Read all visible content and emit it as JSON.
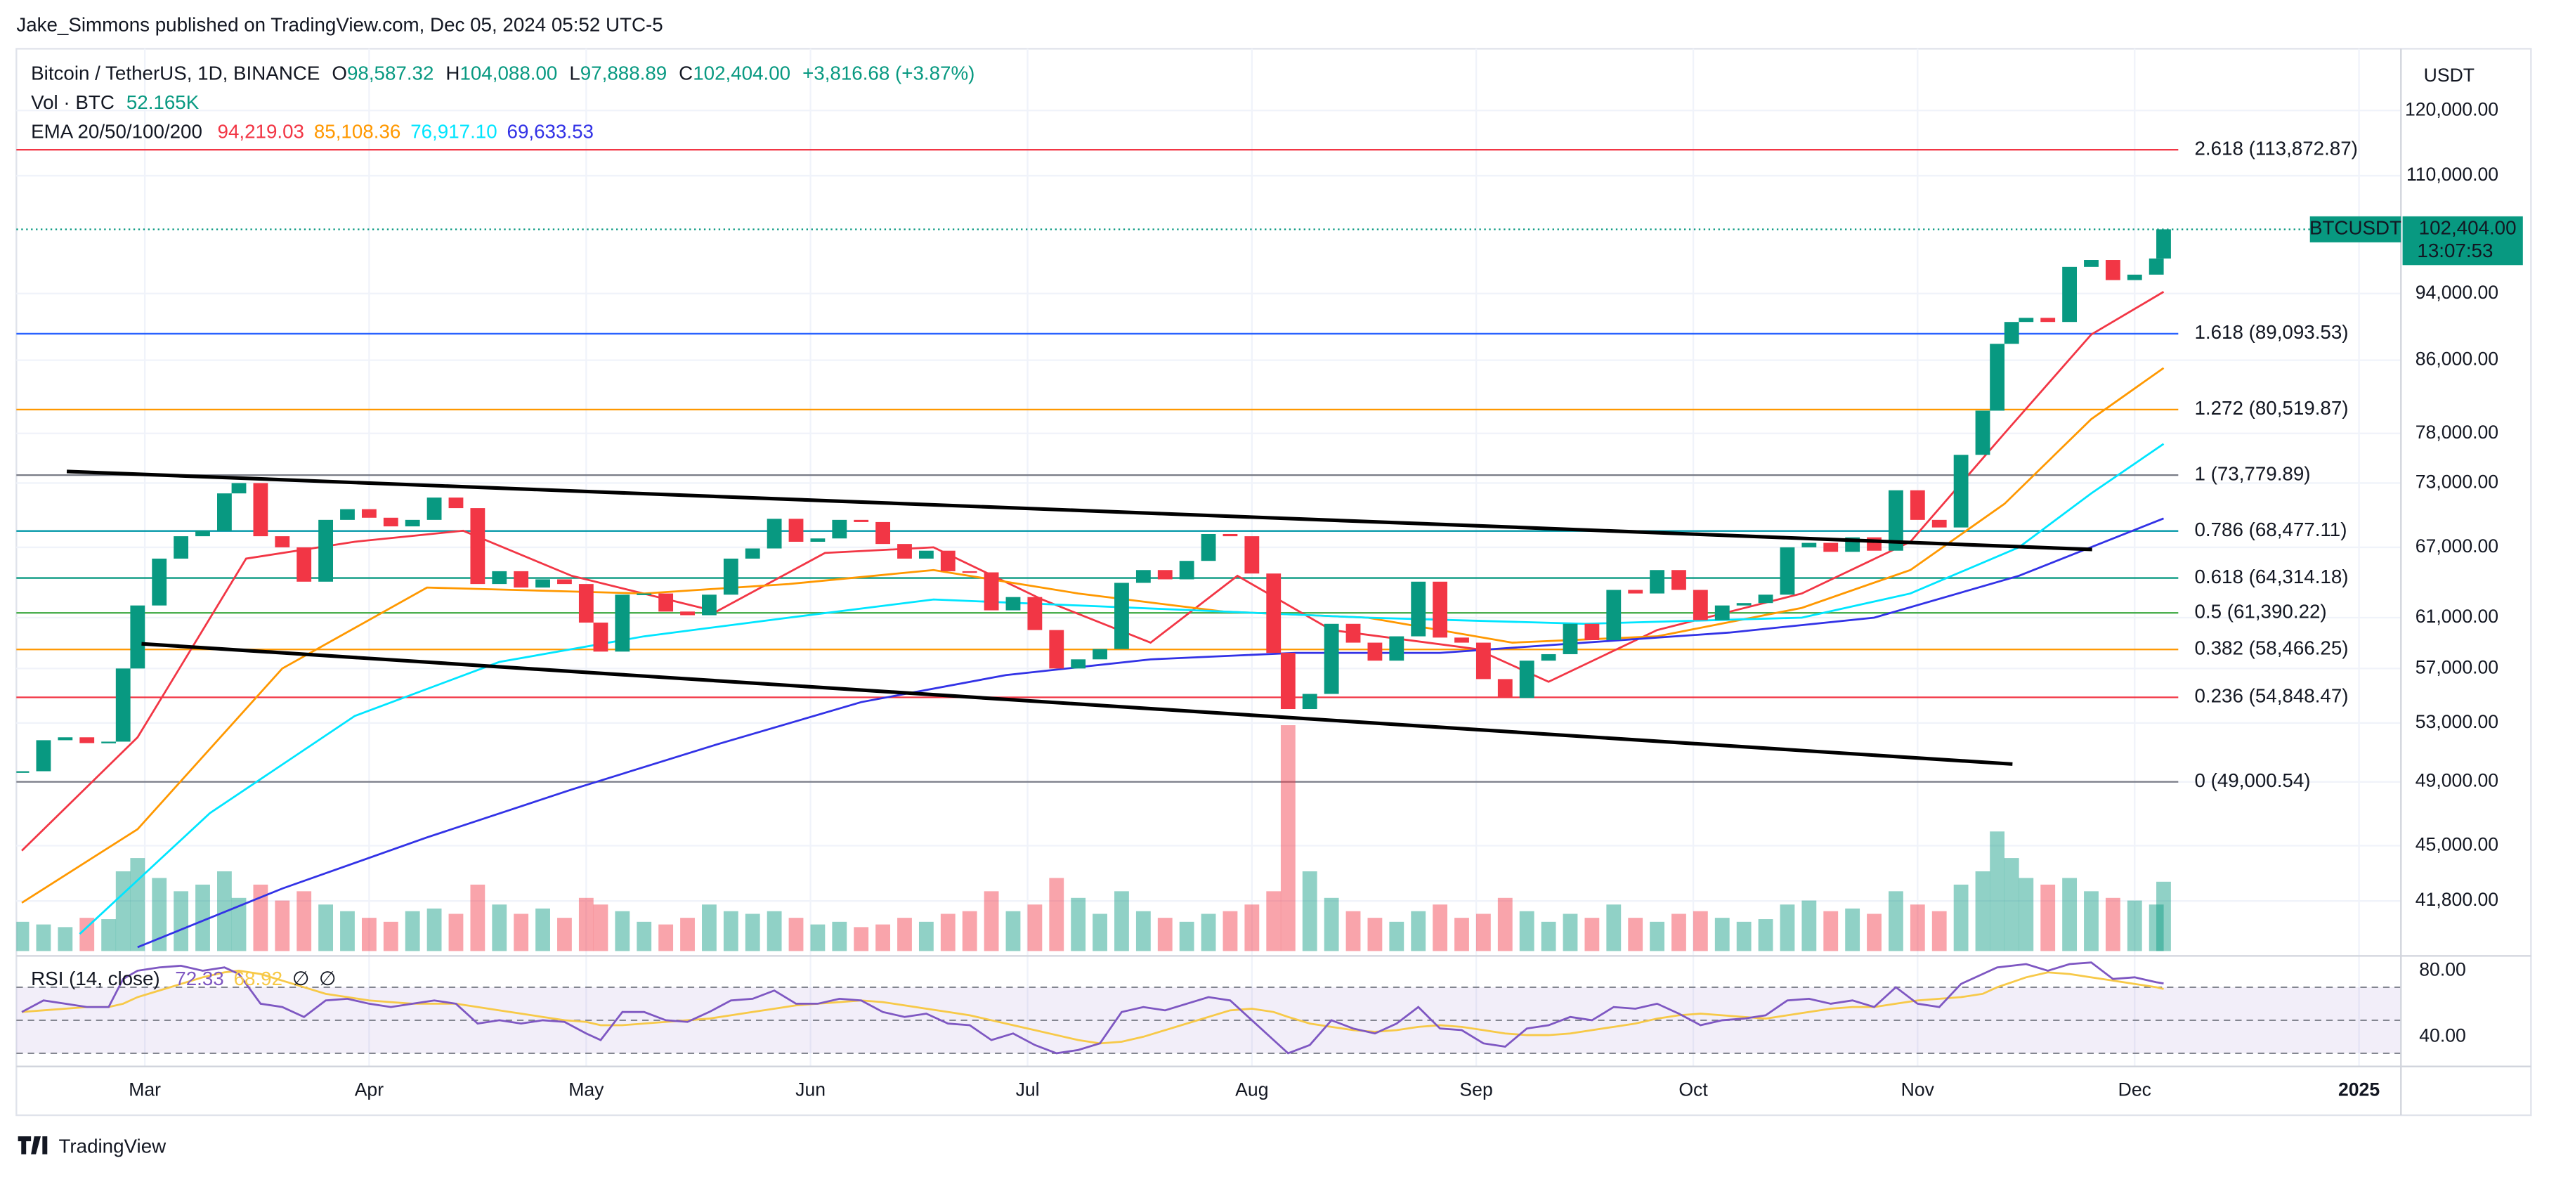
{
  "header": {
    "published": "Jake_Simmons published on TradingView.com, Dec 05, 2024 05:52 UTC-5"
  },
  "chart_data": {
    "type": "candlestick",
    "title": "Bitcoin / TetherUS, 1D, BINANCE",
    "ohlc_text": [
      "O",
      "98,587.32",
      "H",
      "104,088.00",
      "L",
      "97,888.89",
      "C",
      "102,404.00",
      "+3,816.68 (+3.87%)"
    ],
    "currency": "USDT",
    "log_scale": true,
    "grid": true,
    "ylim": [
      39100,
      130300
    ],
    "yticks": [
      {
        "value": 120000,
        "label": "120,000.00"
      },
      {
        "value": 110000,
        "label": "110,000.00"
      },
      {
        "value": 94000,
        "label": "94,000.00"
      },
      {
        "value": 86000,
        "label": "86,000.00"
      },
      {
        "value": 78000,
        "label": "78,000.00"
      },
      {
        "value": 73000,
        "label": "73,000.00"
      },
      {
        "value": 67000,
        "label": "67,000.00"
      },
      {
        "value": 61000,
        "label": "61,000.00"
      },
      {
        "value": 57000,
        "label": "57,000.00"
      },
      {
        "value": 53000,
        "label": "53,000.00"
      },
      {
        "value": 49000,
        "label": "49,000.00"
      },
      {
        "value": 45000,
        "label": "45,000.00"
      },
      {
        "value": 41800,
        "label": "41,800.00"
      }
    ],
    "xlim": [
      43.25,
      372.8
    ],
    "xticks": [
      {
        "value": 61,
        "label": "Mar"
      },
      {
        "value": 92,
        "label": "Apr"
      },
      {
        "value": 122,
        "label": "May"
      },
      {
        "value": 153,
        "label": "Jun"
      },
      {
        "value": 183,
        "label": "Jul"
      },
      {
        "value": 214,
        "label": "Aug"
      },
      {
        "value": 245,
        "label": "Sep"
      },
      {
        "value": 275,
        "label": "Oct"
      },
      {
        "value": 306,
        "label": "Nov"
      },
      {
        "value": 336,
        "label": "Dec"
      },
      {
        "value": 367,
        "label": "2025"
      }
    ],
    "x": [
      44,
      47,
      50,
      53,
      56,
      58,
      60,
      63,
      66,
      69,
      72,
      74,
      77,
      80,
      83,
      86,
      89,
      92,
      95,
      98,
      101,
      104,
      107,
      110,
      113,
      116,
      119,
      122,
      124,
      127,
      130,
      133,
      136,
      139,
      142,
      145,
      148,
      151,
      154,
      157,
      160,
      163,
      166,
      169,
      172,
      175,
      178,
      181,
      184,
      187,
      190,
      193,
      196,
      199,
      202,
      205,
      208,
      211,
      214,
      217,
      219,
      222,
      225,
      228,
      231,
      234,
      237,
      240,
      243,
      246,
      249,
      252,
      255,
      258,
      261,
      264,
      267,
      270,
      273,
      276,
      279,
      282,
      285,
      288,
      291,
      294,
      297,
      300,
      303,
      306,
      309,
      312,
      315,
      317,
      319,
      321,
      324,
      327,
      330,
      333,
      336,
      339,
      340
    ],
    "series": [
      {
        "name": "BTCUSDT",
        "up_color": "#089981",
        "down_color": "#f23645",
        "values": [
          49700,
          51800,
          52000,
          51600,
          51700,
          57000,
          62000,
          66000,
          68000,
          68500,
          72000,
          73000,
          68000,
          67000,
          64000,
          69500,
          70500,
          69700,
          68900,
          69500,
          71600,
          70600,
          63800,
          64900,
          63500,
          64200,
          63800,
          60600,
          58300,
          62900,
          63000,
          61500,
          61200,
          62900,
          66000,
          66900,
          69600,
          67500,
          67800,
          69500,
          69300,
          67300,
          66000,
          66700,
          64900,
          64800,
          61600,
          62700,
          60000,
          57000,
          57700,
          58500,
          63900,
          65000,
          64200,
          65800,
          68200,
          68000,
          64700,
          58200,
          54000,
          55100,
          60500,
          59000,
          57600,
          59500,
          64000,
          59400,
          59000,
          56200,
          54800,
          57600,
          58100,
          60500,
          59200,
          63300,
          63000,
          65000,
          63300,
          60800,
          62000,
          62200,
          62900,
          67000,
          67400,
          66600,
          67900,
          66700,
          72300,
          69500,
          68800,
          75800,
          80400,
          87900,
          90500,
          91000,
          90500,
          97400,
          98300,
          95700,
          96400,
          98500,
          102404
        ]
      }
    ],
    "last_price_label": "102,404.00",
    "countdown": "13:07:53",
    "fib_levels": [
      {
        "value": 113872.87,
        "label": "2.618 (113,872.87)",
        "color": "#f23645"
      },
      {
        "value": 89093.53,
        "label": "1.618 (89,093.53)",
        "color": "#2962ff"
      },
      {
        "value": 80519.87,
        "label": "1.272 (80,519.87)",
        "color": "#ff9800"
      },
      {
        "value": 73779.89,
        "label": "1 (73,779.89)",
        "color": "#787b86"
      },
      {
        "value": 68477.11,
        "label": "0.786 (68,477.11)",
        "color": "#0097a7"
      },
      {
        "value": 64314.18,
        "label": "0.618 (64,314.18)",
        "color": "#089981"
      },
      {
        "value": 61390.22,
        "label": "0.5 (61,390.22)",
        "color": "#4caf50"
      },
      {
        "value": 58466.25,
        "label": "0.382 (58,466.25)",
        "color": "#ff9800"
      },
      {
        "value": 54848.47,
        "label": "0.236 (54,848.47)",
        "color": "#f23645"
      },
      {
        "value": 49000.54,
        "label": "0 (49,000.54)",
        "color": "#787b86"
      }
    ],
    "volume": {
      "title": "Vol · BTC",
      "value_label": "52.165K",
      "ylim": [
        0,
        175000
      ],
      "values": [
        22000,
        20000,
        18000,
        25000,
        24000,
        60000,
        70000,
        55000,
        45000,
        50000,
        60000,
        40000,
        50000,
        38000,
        45000,
        35000,
        30000,
        25000,
        22000,
        30000,
        32000,
        28000,
        50000,
        35000,
        28000,
        32000,
        25000,
        40000,
        35000,
        30000,
        22000,
        20000,
        25000,
        35000,
        30000,
        28000,
        30000,
        25000,
        20000,
        22000,
        18000,
        20000,
        25000,
        22000,
        28000,
        30000,
        45000,
        30000,
        35000,
        55000,
        40000,
        28000,
        45000,
        30000,
        25000,
        22000,
        28000,
        30000,
        35000,
        45000,
        170000,
        60000,
        40000,
        30000,
        25000,
        22000,
        30000,
        35000,
        25000,
        28000,
        40000,
        30000,
        22000,
        28000,
        25000,
        35000,
        25000,
        22000,
        28000,
        30000,
        25000,
        22000,
        24000,
        35000,
        38000,
        30000,
        32000,
        28000,
        45000,
        35000,
        30000,
        50000,
        60000,
        90000,
        70000,
        55000,
        50000,
        55000,
        45000,
        40000,
        38000,
        35000,
        52165
      ]
    },
    "ema": {
      "title": "EMA 20/50/100/200",
      "series": [
        {
          "color": "#f23645",
          "value_label": "94,219.03",
          "x": [
            44,
            60,
            75,
            90,
            105,
            120,
            140,
            155,
            170,
            185,
            200,
            212,
            225,
            245,
            255,
            270,
            290,
            305,
            318,
            330,
            340
          ],
          "values": [
            44700,
            52000,
            66000,
            67500,
            68500,
            64500,
            61500,
            66500,
            67000,
            62500,
            59000,
            64500,
            60000,
            58500,
            56000,
            60000,
            63000,
            67500,
            78000,
            89000,
            94219.03
          ]
        },
        {
          "color": "#ff9800",
          "value_label": "85,108.36",
          "x": [
            44,
            60,
            80,
            100,
            130,
            150,
            170,
            190,
            210,
            230,
            250,
            270,
            290,
            305,
            318,
            330,
            340
          ],
          "values": [
            41700,
            46000,
            57000,
            63500,
            63000,
            63800,
            65000,
            63000,
            61500,
            61000,
            59000,
            59500,
            61800,
            65000,
            71000,
            79500,
            85108.36
          ]
        },
        {
          "color": "#00e5ff",
          "value_label": "76,917.10",
          "x": [
            52,
            70,
            90,
            110,
            130,
            150,
            170,
            190,
            210,
            230,
            260,
            290,
            305,
            320,
            330,
            340
          ],
          "values": [
            40000,
            47000,
            53500,
            57500,
            59500,
            61000,
            62500,
            62000,
            61500,
            61000,
            60500,
            61000,
            63000,
            67000,
            72000,
            76917.1
          ]
        },
        {
          "color": "#3232e6",
          "value_label": "69,633.53",
          "x": [
            60,
            80,
            100,
            120,
            140,
            160,
            180,
            200,
            220,
            240,
            260,
            280,
            300,
            320,
            340
          ],
          "values": [
            39300,
            42500,
            45500,
            48500,
            51500,
            54500,
            56500,
            57700,
            58200,
            58200,
            59000,
            59800,
            61000,
            64500,
            69633.53
          ]
        }
      ]
    },
    "rsi": {
      "title": "RSI (14, close)",
      "extra_labels": [
        "∅",
        "∅"
      ],
      "ylim": [
        23,
        87
      ],
      "yticks": [
        {
          "value": 80,
          "label": "80.00"
        },
        {
          "value": 40,
          "label": "40.00"
        }
      ],
      "bands": [
        70,
        50,
        30
      ],
      "series": [
        {
          "color": "#7e57c2",
          "value_label": "72.33",
          "values": [
            55,
            62,
            60,
            58,
            58,
            75,
            80,
            82,
            83,
            80,
            82,
            78,
            60,
            58,
            52,
            62,
            63,
            60,
            58,
            60,
            62,
            60,
            48,
            50,
            48,
            50,
            49,
            42,
            38,
            55,
            55,
            50,
            49,
            55,
            62,
            63,
            68,
            60,
            60,
            63,
            62,
            55,
            52,
            54,
            48,
            47,
            38,
            42,
            35,
            30,
            32,
            36,
            55,
            58,
            56,
            60,
            64,
            62,
            50,
            38,
            30,
            35,
            50,
            45,
            42,
            48,
            58,
            45,
            44,
            36,
            34,
            45,
            47,
            52,
            50,
            58,
            57,
            60,
            54,
            47,
            50,
            51,
            53,
            62,
            63,
            60,
            62,
            58,
            70,
            60,
            58,
            72,
            78,
            82,
            83,
            84,
            80,
            84,
            85,
            75,
            76,
            73,
            72.33
          ]
        },
        {
          "color": "#f7c948",
          "value_label": "68.92",
          "values": [
            55,
            56,
            57,
            58,
            58,
            60,
            64,
            68,
            72,
            76,
            79,
            80,
            78,
            74,
            70,
            66,
            64,
            62,
            61,
            60,
            60,
            60,
            58,
            56,
            54,
            52,
            50,
            49,
            47,
            47,
            48,
            49,
            50,
            51,
            53,
            55,
            57,
            59,
            60,
            61,
            62,
            61,
            59,
            57,
            55,
            53,
            50,
            47,
            44,
            41,
            38,
            36,
            37,
            40,
            44,
            48,
            52,
            56,
            57,
            55,
            52,
            48,
            46,
            44,
            43,
            44,
            46,
            47,
            46,
            44,
            42,
            41,
            41,
            42,
            44,
            46,
            48,
            51,
            53,
            54,
            53,
            52,
            51,
            53,
            55,
            57,
            58,
            58,
            60,
            62,
            63,
            64,
            66,
            70,
            73,
            76,
            79,
            78,
            76,
            74,
            72,
            70,
            68.92
          ]
        }
      ]
    }
  },
  "footer": {
    "brand": "TradingView"
  }
}
